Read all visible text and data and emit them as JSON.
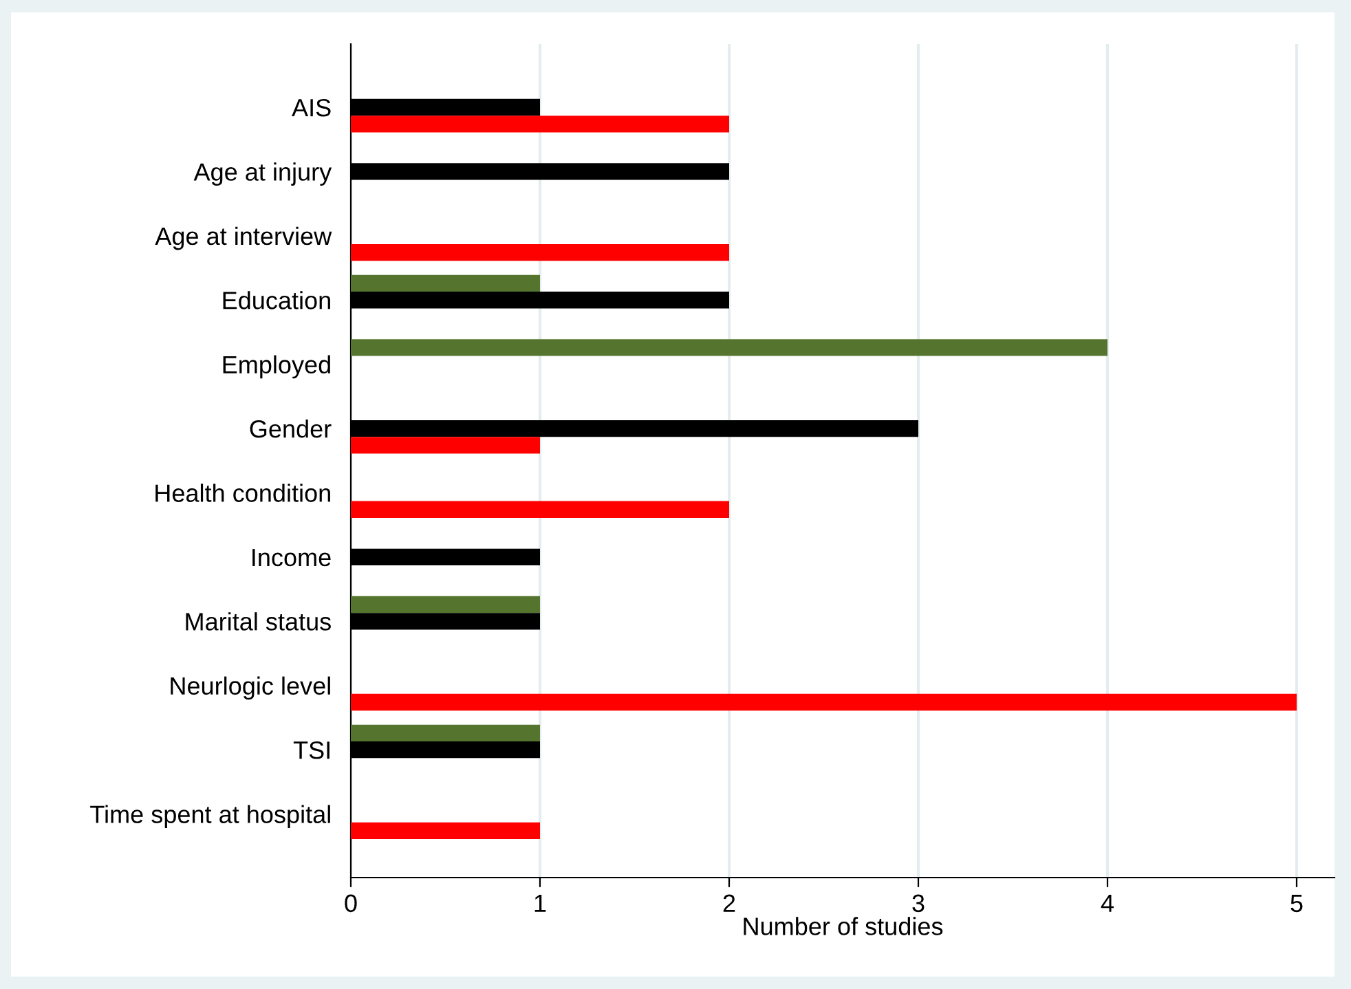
{
  "chart_data": {
    "type": "bar",
    "orientation": "horizontal",
    "xlabel": "Number of studies",
    "categories": [
      "AIS",
      "Age at injury",
      "Age at interview",
      "Education",
      "Employed",
      "Gender",
      "Health condition",
      "Income",
      "Marital status",
      "Neurlogic level",
      "TSI",
      "Time spent at hospital"
    ],
    "series": [
      {
        "color": "#55752f",
        "values": [
          null,
          null,
          null,
          1,
          4,
          null,
          null,
          null,
          1,
          null,
          1,
          null
        ]
      },
      {
        "color": "#000000",
        "values": [
          1,
          2,
          null,
          2,
          null,
          3,
          null,
          1,
          1,
          null,
          1,
          null
        ]
      },
      {
        "color": "#ff0000",
        "values": [
          2,
          null,
          2,
          null,
          null,
          1,
          2,
          null,
          null,
          5,
          null,
          1
        ]
      }
    ],
    "xlim": [
      0,
      5.2
    ],
    "xticks": [
      0,
      1,
      2,
      3,
      4,
      5
    ],
    "grid": "x",
    "legend": false
  }
}
